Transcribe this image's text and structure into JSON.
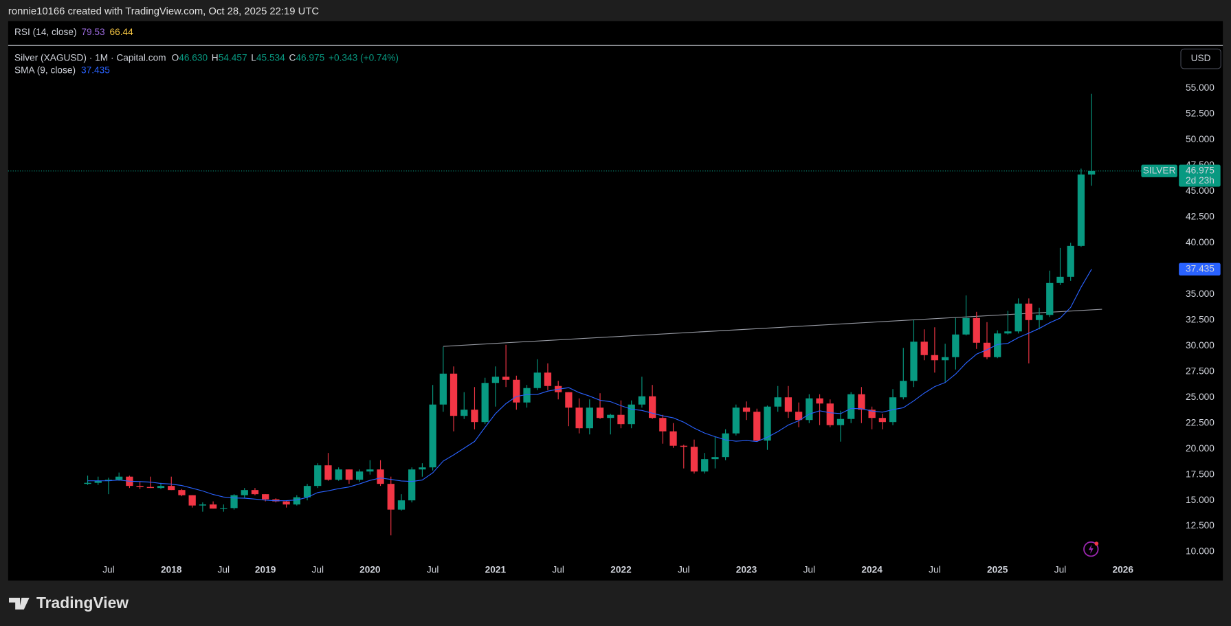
{
  "header": {
    "attribution": "ronnie10166 created with TradingView.com, Oct 28, 2025 22:19 UTC",
    "brand": "TradingView"
  },
  "rsi": {
    "name": "RSI (14, close)",
    "values": [
      79.53,
      66.44
    ]
  },
  "chart_data": {
    "type": "candlestick",
    "title": "Silver (XAGUSD) · 1M · Capital.com",
    "legend": {
      "open_key": "O",
      "open_label": "46.630",
      "high_key": "H",
      "low_key": "L",
      "close_key": "C",
      "change": "+0.343 (+0.74%)"
    },
    "currency": "USD",
    "symbol_tag": "SILVER",
    "countdown": "2d 23h",
    "up_color": "#089981",
    "down_color": "#f23645",
    "grid": false,
    "xlim": [
      -7.6,
      104.2
    ],
    "xticks": [
      {
        "value": 2,
        "label": "Jul"
      },
      {
        "value": 8,
        "label": "2018"
      },
      {
        "value": 13,
        "label": "Jul"
      },
      {
        "value": 17,
        "label": "2019"
      },
      {
        "value": 22,
        "label": "Jul"
      },
      {
        "value": 27,
        "label": "2020"
      },
      {
        "value": 33,
        "label": "Jul"
      },
      {
        "value": 39,
        "label": "2021"
      },
      {
        "value": 45,
        "label": "Jul"
      },
      {
        "value": 51,
        "label": "2022"
      },
      {
        "value": 57,
        "label": "Jul"
      },
      {
        "value": 63,
        "label": "2023"
      },
      {
        "value": 69,
        "label": "Jul"
      },
      {
        "value": 75,
        "label": "2024"
      },
      {
        "value": 81,
        "label": "Jul"
      },
      {
        "value": 87,
        "label": "2025"
      },
      {
        "value": 93,
        "label": "Jul"
      },
      {
        "value": 99,
        "label": "2026"
      }
    ],
    "ylim": [
      9.2,
      59.0
    ],
    "yticks": [
      {
        "value": 10,
        "label": "10.000"
      },
      {
        "value": 12.5,
        "label": "12.500"
      },
      {
        "value": 15,
        "label": "15.000"
      },
      {
        "value": 17.5,
        "label": "17.500"
      },
      {
        "value": 20,
        "label": "20.000"
      },
      {
        "value": 22.5,
        "label": "22.500"
      },
      {
        "value": 25,
        "label": "25.000"
      },
      {
        "value": 27.5,
        "label": "27.500"
      },
      {
        "value": 30,
        "label": "30.000"
      },
      {
        "value": 32.5,
        "label": "32.500"
      },
      {
        "value": 35,
        "label": "35.000"
      },
      {
        "value": 37.5,
        "label": "37.500"
      },
      {
        "value": 40,
        "label": "40.000"
      },
      {
        "value": 42.5,
        "label": "42.500"
      },
      {
        "value": 45,
        "label": "45.000"
      },
      {
        "value": 47.5,
        "label": "47.500"
      },
      {
        "value": 50,
        "label": "50.000"
      },
      {
        "value": 52.5,
        "label": "52.500"
      },
      {
        "value": 55,
        "label": "55.000"
      }
    ],
    "open": [
      16.6,
      16.7,
      16.9,
      17.0,
      17.3,
      16.4,
      16.3,
      16.2,
      16.4,
      16.0,
      15.5,
      14.5,
      14.6,
      14.2,
      14.25,
      15.5,
      16.0,
      15.6,
      15.1,
      14.9,
      14.6,
      15.3,
      16.4,
      18.4,
      17.0,
      18.0,
      17.0,
      17.8,
      18.0,
      16.6,
      14.1,
      15.0,
      18.0,
      18.2,
      24.3,
      27.3,
      23.2,
      23.8,
      22.6,
      26.4,
      27.0,
      26.7,
      24.5,
      25.9,
      27.4,
      26.1,
      25.5,
      24.0,
      22.0,
      24.0,
      23.0,
      23.3,
      22.4,
      24.3,
      25.1,
      23.0,
      21.7,
      20.3,
      20.2,
      17.8,
      19.0,
      19.2,
      21.5,
      24.0,
      23.6,
      20.8,
      24.1,
      25.0,
      23.6,
      22.8,
      24.9,
      24.4,
      22.3,
      22.9,
      25.3,
      23.8,
      23.0,
      22.6,
      25.0,
      26.6,
      30.4,
      29.1,
      28.6,
      28.9,
      31.1,
      32.7,
      30.3,
      28.9,
      31.2,
      31.4,
      34.1,
      32.5,
      33.0,
      36.1,
      36.7,
      39.7,
      46.63
    ],
    "high": [
      17.4,
      17.3,
      17.2,
      17.7,
      17.4,
      16.8,
      17.3,
      16.7,
      17.3,
      16.1,
      15.5,
      14.8,
      14.9,
      14.6,
      15.6,
      16.2,
      16.2,
      15.6,
      15.2,
      15.0,
      15.5,
      16.6,
      18.6,
      19.6,
      18.2,
      18.0,
      18.0,
      18.9,
      18.9,
      17.3,
      15.6,
      18.2,
      18.6,
      26.2,
      29.9,
      28.0,
      25.5,
      26.0,
      26.9,
      28.0,
      30.1,
      27.1,
      26.2,
      28.7,
      28.3,
      26.6,
      25.5,
      24.9,
      24.8,
      25.4,
      23.4,
      24.7,
      24.7,
      27.0,
      26.2,
      23.3,
      22.5,
      20.4,
      20.9,
      19.6,
      21.2,
      21.9,
      24.3,
      24.6,
      23.9,
      24.2,
      26.1,
      26.1,
      24.5,
      25.3,
      25.3,
      24.8,
      23.7,
      25.5,
      26.0,
      24.1,
      23.4,
      25.8,
      29.8,
      32.5,
      31.6,
      31.8,
      30.2,
      32.7,
      34.9,
      33.3,
      32.3,
      31.5,
      33.4,
      34.6,
      34.6,
      33.7,
      37.3,
      39.5,
      40.0,
      47.2,
      54.457
    ],
    "low": [
      16.5,
      16.5,
      15.6,
      16.9,
      16.2,
      16.1,
      16.2,
      16.1,
      16.0,
      15.4,
      14.3,
      13.9,
      14.2,
      13.9,
      14.1,
      15.2,
      15.5,
      14.9,
      14.8,
      14.3,
      14.5,
      15.0,
      16.2,
      16.9,
      16.9,
      16.6,
      16.8,
      17.5,
      16.4,
      11.6,
      14.0,
      14.8,
      17.3,
      17.9,
      23.6,
      21.7,
      22.9,
      21.9,
      22.4,
      24.1,
      26.0,
      23.8,
      24.0,
      25.7,
      25.7,
      24.8,
      22.2,
      21.5,
      21.4,
      22.9,
      21.4,
      22.0,
      22.0,
      24.0,
      22.9,
      20.5,
      20.1,
      18.1,
      17.6,
      17.6,
      18.1,
      18.9,
      21.3,
      22.8,
      20.7,
      19.9,
      23.6,
      23.0,
      22.1,
      22.5,
      22.3,
      22.1,
      20.7,
      22.5,
      22.5,
      21.9,
      21.9,
      22.3,
      24.8,
      26.0,
      28.6,
      27.4,
      26.5,
      27.7,
      31.0,
      29.7,
      28.7,
      28.8,
      31.1,
      31.2,
      28.3,
      31.6,
      32.8,
      35.9,
      36.3,
      39.6,
      45.534
    ],
    "close": [
      16.7,
      16.9,
      17.0,
      17.3,
      16.4,
      16.3,
      16.2,
      16.4,
      16.0,
      15.5,
      14.5,
      14.6,
      14.2,
      14.25,
      15.5,
      16.0,
      15.6,
      15.1,
      14.9,
      14.6,
      15.3,
      16.4,
      18.4,
      17.0,
      18.0,
      17.0,
      17.8,
      18.0,
      16.6,
      14.1,
      15.0,
      18.0,
      18.2,
      24.3,
      27.3,
      23.2,
      23.8,
      22.6,
      26.4,
      27.0,
      26.7,
      24.5,
      25.9,
      27.4,
      26.1,
      25.5,
      24.0,
      22.0,
      24.0,
      23.0,
      23.3,
      22.4,
      24.3,
      25.1,
      23.0,
      21.7,
      20.3,
      20.2,
      17.8,
      19.0,
      19.2,
      21.5,
      24.0,
      23.6,
      20.8,
      24.1,
      25.0,
      23.6,
      22.8,
      24.9,
      24.4,
      22.3,
      22.9,
      25.3,
      23.8,
      23.0,
      22.6,
      25.0,
      26.6,
      30.4,
      29.1,
      28.6,
      28.9,
      31.1,
      32.7,
      30.3,
      28.9,
      31.2,
      31.4,
      34.1,
      32.5,
      33.0,
      36.1,
      36.7,
      39.7,
      46.63,
      46.975
    ],
    "sma": {
      "name": "SMA (9, close)",
      "color": "#2962ff",
      "values": [
        16.9,
        16.9,
        16.9,
        16.97,
        16.86,
        16.82,
        16.77,
        16.64,
        16.58,
        16.44,
        16.18,
        15.91,
        15.57,
        15.32,
        15.23,
        15.21,
        15.12,
        15.02,
        14.96,
        14.97,
        15.04,
        15.29,
        15.76,
        15.92,
        16.14,
        16.3,
        16.6,
        16.94,
        17.17,
        17.03,
        16.88,
        16.83,
        16.97,
        17.67,
        18.81,
        19.41,
        20.06,
        20.72,
        22.09,
        23.42,
        24.39,
        25.09,
        25.27,
        25.28,
        25.6,
        25.79,
        25.94,
        25.46,
        25.12,
        24.71,
        24.58,
        24.19,
        23.84,
        23.73,
        23.46,
        23.2,
        23.01,
        22.59,
        22.01,
        21.53,
        21.18,
        20.87,
        20.74,
        20.81,
        20.71,
        21.13,
        21.67,
        22.31,
        22.73,
        23.37,
        23.69,
        23.5,
        23.42,
        23.92,
        23.89,
        23.67,
        23.56,
        23.8,
        23.99,
        24.66,
        25.41,
        26.04,
        26.44,
        27.26,
        28.33,
        29.19,
        29.62,
        30.13,
        30.24,
        30.8,
        31.23,
        31.69,
        32.24,
        32.69,
        33.73,
        35.7,
        37.435
      ]
    },
    "trendline": {
      "color": "#9598a1",
      "x": [
        34,
        97
      ],
      "values": [
        29.95,
        33.55
      ]
    }
  }
}
